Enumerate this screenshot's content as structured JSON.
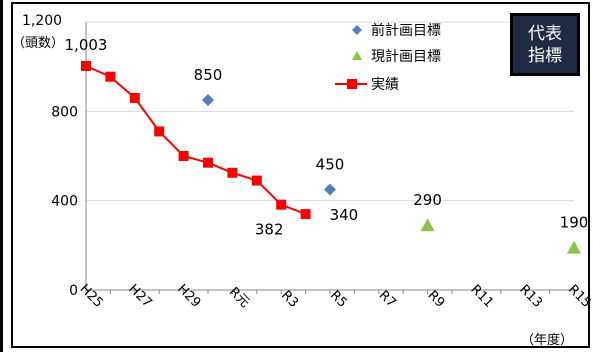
{
  "chart_data": {
    "type": "line",
    "ylabel_top": "1,200",
    "ylabel_unit": "（頭数）",
    "xlabel_unit": "（年度）",
    "ylim": [
      0,
      1200
    ],
    "yticks": [
      "0",
      "400",
      "800",
      "1,200"
    ],
    "ytick_values": [
      0,
      400,
      800,
      1200
    ],
    "categories": [
      "H25",
      "H26",
      "H27",
      "H28",
      "H29",
      "H30",
      "R元",
      "R2",
      "R3",
      "R4",
      "R5",
      "R6",
      "R7",
      "R8",
      "R9",
      "R10",
      "R11",
      "R12",
      "R13",
      "R14",
      "R15"
    ],
    "xtick_labels": [
      "H25",
      "H27",
      "H29",
      "R元",
      "R3",
      "R5",
      "R7",
      "R9",
      "R11",
      "R13",
      "R15"
    ],
    "series": [
      {
        "name": "前計画目標",
        "marker": "diamond",
        "color": "#4f81bd",
        "points": [
          {
            "x": "H30",
            "y": 850
          },
          {
            "x": "R5",
            "y": 450
          }
        ],
        "labels": [
          "850",
          "450"
        ]
      },
      {
        "name": "現計画目標",
        "marker": "triangle",
        "color": "#8fc44c",
        "points": [
          {
            "x": "R9",
            "y": 290
          },
          {
            "x": "R15",
            "y": 190
          }
        ],
        "labels": [
          "290",
          "190"
        ]
      },
      {
        "name": "実績",
        "marker": "square",
        "color": "#ff0000",
        "points": [
          {
            "x": "H25",
            "y": 1003
          },
          {
            "x": "H26",
            "y": 955
          },
          {
            "x": "H27",
            "y": 860
          },
          {
            "x": "H28",
            "y": 710
          },
          {
            "x": "H29",
            "y": 600
          },
          {
            "x": "H30",
            "y": 570
          },
          {
            "x": "R元",
            "y": 525
          },
          {
            "x": "R2",
            "y": 490
          },
          {
            "x": "R3",
            "y": 382
          },
          {
            "x": "R4",
            "y": 340
          }
        ],
        "labels": [
          "1,003",
          "382",
          "340"
        ]
      }
    ],
    "legend": {
      "position": "top-right",
      "items": [
        "前計画目標",
        "現計画目標",
        "実績"
      ]
    },
    "grid": "horizontal"
  },
  "badge": {
    "line1": "代表",
    "line2": "指標",
    "bg": "#1f2a44"
  }
}
